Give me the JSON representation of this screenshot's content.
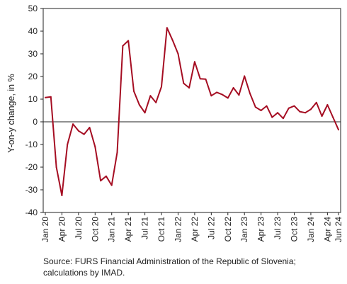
{
  "chart_data": {
    "type": "line",
    "ylabel": "Y-on-y change, in %",
    "ylim": [
      -40,
      50
    ],
    "yticks": [
      -40,
      -30,
      -20,
      -10,
      0,
      10,
      20,
      30,
      40,
      50
    ],
    "xtick_labels": [
      "Jan 20",
      "Apr 20",
      "Jul 20",
      "Oct 20",
      "Jan 21",
      "Apr 21",
      "Jul 21",
      "Oct 21",
      "Jan 22",
      "Apr 22",
      "Jul 22",
      "Oct 22",
      "Jan 23",
      "Apr 23",
      "Jul 23",
      "Oct 23",
      "Jan 24",
      "Apr 24",
      "Jun 24"
    ],
    "grid": false,
    "line_color": "#a50d22",
    "x": [
      "Jan 20",
      "Feb 20",
      "Mar 20",
      "Apr 20",
      "May 20",
      "Jun 20",
      "Jul 20",
      "Aug 20",
      "Sep 20",
      "Oct 20",
      "Nov 20",
      "Dec 20",
      "Jan 21",
      "Feb 21",
      "Mar 21",
      "Apr 21",
      "May 21",
      "Jun 21",
      "Jul 21",
      "Aug 21",
      "Sep 21",
      "Oct 21",
      "Nov 21",
      "Dec 21",
      "Jan 22",
      "Feb 22",
      "Mar 22",
      "Apr 22",
      "May 22",
      "Jun 22",
      "Jul 22",
      "Aug 22",
      "Sep 22",
      "Oct 22",
      "Nov 22",
      "Dec 22",
      "Jan 23",
      "Feb 23",
      "Mar 23",
      "Apr 23",
      "May 23",
      "Jun 23",
      "Jul 23",
      "Aug 23",
      "Sep 23",
      "Oct 23",
      "Nov 23",
      "Dec 23",
      "Jan 24",
      "Feb 24",
      "Mar 24",
      "Apr 24",
      "May 24",
      "Jun 24"
    ],
    "series": [
      {
        "values": [
          10.7,
          11.0,
          -20.0,
          -32.5,
          -10.0,
          -1.0,
          -4.0,
          -5.5,
          -2.5,
          -11.0,
          -26.0,
          -24.0,
          -28.0,
          -13.5,
          33.5,
          35.8,
          13.5,
          7.5,
          4.0,
          11.5,
          8.5,
          15.5,
          41.5,
          36.0,
          30.0,
          17.0,
          15.0,
          26.5,
          19.0,
          18.8,
          11.5,
          13.0,
          12.0,
          10.5,
          15.0,
          11.8,
          20.2,
          12.5,
          6.5,
          5.0,
          7.0,
          2.0,
          4.0,
          1.5,
          6.0,
          7.0,
          4.5,
          4.0,
          5.5,
          8.5,
          2.5,
          7.5,
          2.0,
          -3.5
        ]
      }
    ]
  },
  "source": "Source: FURS Financial Administration of the Republic of Slovenia; calculations by IMAD."
}
